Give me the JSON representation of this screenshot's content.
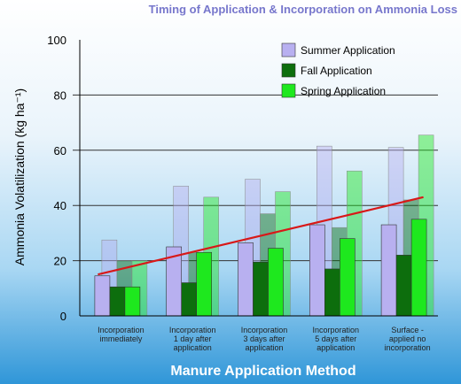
{
  "chart_data": {
    "type": "bar",
    "title": "Timing of Application & Incorporation on Ammonia Loss",
    "ylabel": "Ammonia Volatilization  (kg ha⁻¹)",
    "xlabel": "Manure Application Method",
    "ylim": [
      0,
      100
    ],
    "yticks": [
      "0",
      "20",
      "40",
      "60",
      "80",
      "100"
    ],
    "categories": [
      [
        "Incorporation",
        "immediately"
      ],
      [
        "Incorporation",
        "1 day after",
        "application"
      ],
      [
        "Incorporation",
        "3 days after",
        "application"
      ],
      [
        "Incorporation",
        "5 days after",
        "application"
      ],
      [
        "Surface -",
        "applied no",
        "incorporation"
      ]
    ],
    "series": [
      {
        "name": "Summer Application",
        "color": "#b8b0f0",
        "values": [
          14.5,
          25,
          26.5,
          33,
          33
        ],
        "back_values": [
          27.5,
          47,
          49.5,
          61.5,
          61
        ]
      },
      {
        "name": "Fall Application",
        "color": "#0d6e0d",
        "values": [
          10.5,
          12,
          19.5,
          17,
          22
        ],
        "back_values": [
          20,
          23,
          37,
          32,
          42
        ]
      },
      {
        "name": "Spring Application",
        "color": "#1ee81e",
        "values": [
          10.5,
          23,
          24.5,
          28,
          35
        ],
        "back_values": [
          20,
          43,
          45,
          52.5,
          65.5
        ]
      }
    ],
    "trendline": {
      "color": "#d81818",
      "start": 15,
      "end": 43
    },
    "legend_position": "top-right"
  }
}
